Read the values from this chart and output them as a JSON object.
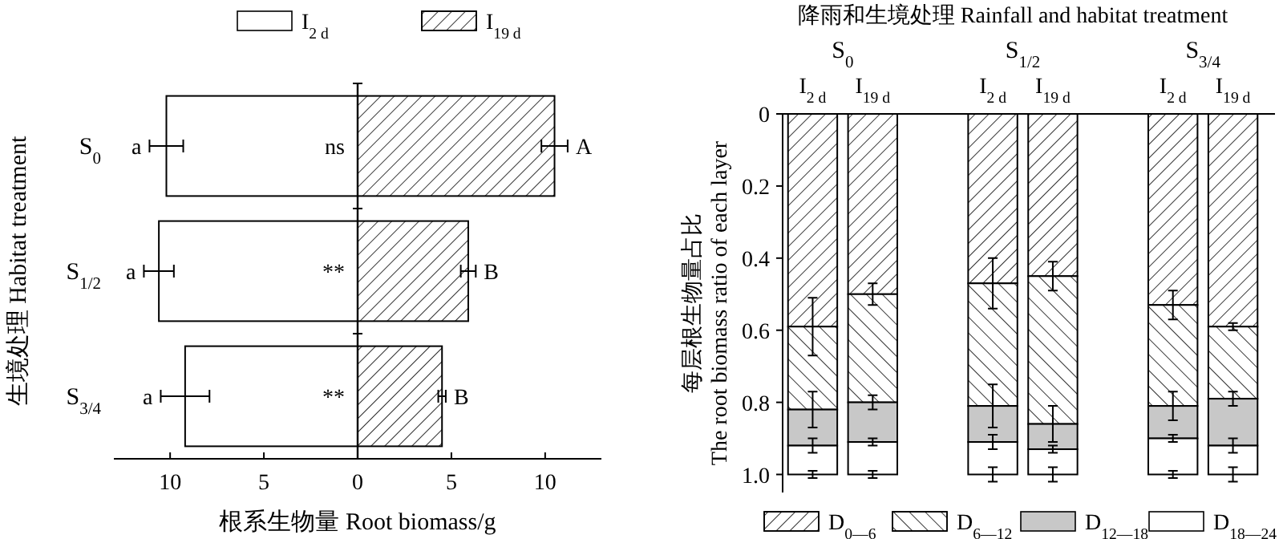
{
  "chart_data": [
    {
      "type": "bar",
      "orientation": "horizontal",
      "stacked": true,
      "xlabel": "根系生物量 Root biomass/g",
      "ylabel": "生境处理 Habitat treatment",
      "categories": [
        "S$_{0}$",
        "S$_{1/2}$",
        "S$_{3/4}$"
      ],
      "series": [
        {
          "name": "I$_{2 d}$",
          "color": "#ffffff",
          "values": [
            -10.2,
            -10.6,
            -9.2
          ],
          "errors": [
            0.9,
            0.8,
            1.3
          ],
          "value_labels": [
            "a",
            "a",
            "a"
          ]
        },
        {
          "name": "I$_{19 d}$",
          "color": "#ffffff",
          "values": [
            10.5,
            5.9,
            4.5
          ],
          "errors": [
            0.7,
            0.4,
            0.2
          ],
          "value_labels": [
            "A",
            "B",
            "B"
          ]
        }
      ],
      "xlim": [
        -13,
        13
      ],
      "xticks": [
        {
          "value": -10,
          "label": "10"
        },
        {
          "value": -5,
          "label": "5"
        },
        0,
        5,
        10
      ],
      "legend": "top",
      "annotations": [
        "ns",
        "**",
        "**"
      ]
    },
    {
      "type": "bar",
      "stacked": true,
      "title": "降雨和生境处理 Rainfall and habitat treatment",
      "ylabel": "每层根生物量占比 The root biomass ratio of each layer",
      "categories": [
        "I$_{2 d}$",
        "I$_{19 d}$",
        null,
        "I$_{2 d}$",
        "I$_{19 d}$",
        null,
        "I$_{2 d}$",
        "I$_{19 d}$"
      ],
      "series": [
        {
          "name": "D$_{0—6}$",
          "color": "#ffffff",
          "values": [
            0.59,
            0.5,
            null,
            0.47,
            0.45,
            null,
            0.53,
            0.59
          ],
          "errors": [
            0.08,
            0.03,
            null,
            0.07,
            0.04,
            null,
            0.04,
            0.01
          ]
        },
        {
          "name": "D$_{6—12}$",
          "color": "#ffffff",
          "values": [
            0.23,
            0.3,
            null,
            0.34,
            0.41,
            null,
            0.28,
            0.2
          ],
          "errors": [
            0.05,
            0.02,
            null,
            0.06,
            0.05,
            null,
            0.04,
            0.02
          ]
        },
        {
          "name": "D$_{12—18}$",
          "color": "#c8c8c8",
          "values": [
            0.1,
            0.11,
            null,
            0.1,
            0.07,
            null,
            0.09,
            0.13
          ],
          "errors": [
            0.02,
            0.01,
            null,
            0.02,
            0.01,
            null,
            0.01,
            0.02
          ]
        },
        {
          "name": "D$_{18—24}$",
          "color": "#ffffff",
          "values": [
            0.08,
            0.09,
            null,
            0.09,
            0.07,
            null,
            0.1,
            0.08
          ],
          "errors": [
            0.01,
            0.01,
            null,
            0.02,
            0.02,
            null,
            0.01,
            0.02
          ]
        }
      ],
      "ylim": [
        1.05,
        0
      ],
      "yticks": [
        0,
        0.2,
        0.4,
        0.6,
        0.8,
        {
          "value": 1,
          "label": "1.0"
        }
      ],
      "legend": "bottom",
      "annotations": [
        "S$_{0}$",
        "S$_{1/2}$",
        "S$_{3/4}$"
      ]
    }
  ]
}
